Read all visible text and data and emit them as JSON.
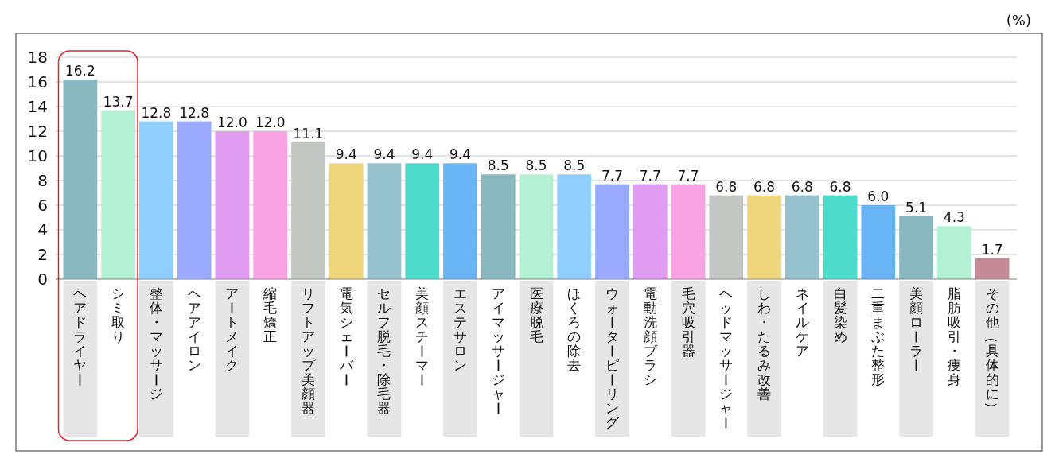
{
  "chart_data": {
    "type": "bar",
    "ylabel": "(%)",
    "categories": [
      "ヘアドライヤー",
      "シミ取り",
      "整体・マッサージ",
      "ヘアアイロン",
      "アートメイク",
      "縮毛矯正",
      "リフトアップ美顔器",
      "電気シェーバー",
      "セルフ脱毛・除毛器",
      "美顔スチーマー",
      "エステサロン",
      "アイマッサージャー",
      "医療脱毛",
      "ほくろの除去",
      "ウォーターピーリング",
      "電動洗顔ブラシ",
      "毛穴吸引器",
      "ヘッドマッサージャー",
      "しわ・たるみ改善",
      "ネイルケア",
      "白髪染め",
      "二重まぶた整形",
      "美顔ローラー",
      "脂肪吸引・痩身",
      "その他（具体的に）"
    ],
    "values": [
      16.2,
      13.7,
      12.8,
      12.8,
      12.0,
      12.0,
      11.1,
      9.4,
      9.4,
      9.4,
      9.4,
      8.5,
      8.5,
      8.5,
      7.7,
      7.7,
      7.7,
      6.8,
      6.8,
      6.8,
      6.8,
      6.0,
      5.1,
      4.3,
      1.7
    ],
    "colors": [
      "#8ab8c0",
      "#b4f0d4",
      "#8fcfff",
      "#9aabff",
      "#e09cf0",
      "#f9a3e4",
      "#c4c8c4",
      "#efd67a",
      "#97c3cf",
      "#4ddccc",
      "#69b4f5",
      "#8ab8c0",
      "#b4f0d4",
      "#8fcfff",
      "#9aabff",
      "#e09cf0",
      "#f9a3e4",
      "#c4c8c4",
      "#efd67a",
      "#97c3cf",
      "#4ddccc",
      "#69b4f5",
      "#8ab8c0",
      "#b4f0d4",
      "#c48a96"
    ],
    "value_labels": [
      "16.2",
      "13.7",
      "12.8",
      "12.8",
      "12.0",
      "12.0",
      "11.1",
      "9.4",
      "9.4",
      "9.4",
      "9.4",
      "8.5",
      "8.5",
      "8.5",
      "7.7",
      "7.7",
      "7.7",
      "6.8",
      "6.8",
      "6.8",
      "6.8",
      "6.0",
      "5.1",
      "4.3",
      "1.7"
    ],
    "ylim": [
      0,
      18
    ],
    "yticks": [
      0,
      2,
      4,
      6,
      8,
      10,
      12,
      14,
      16,
      18
    ],
    "grid": "y"
  }
}
